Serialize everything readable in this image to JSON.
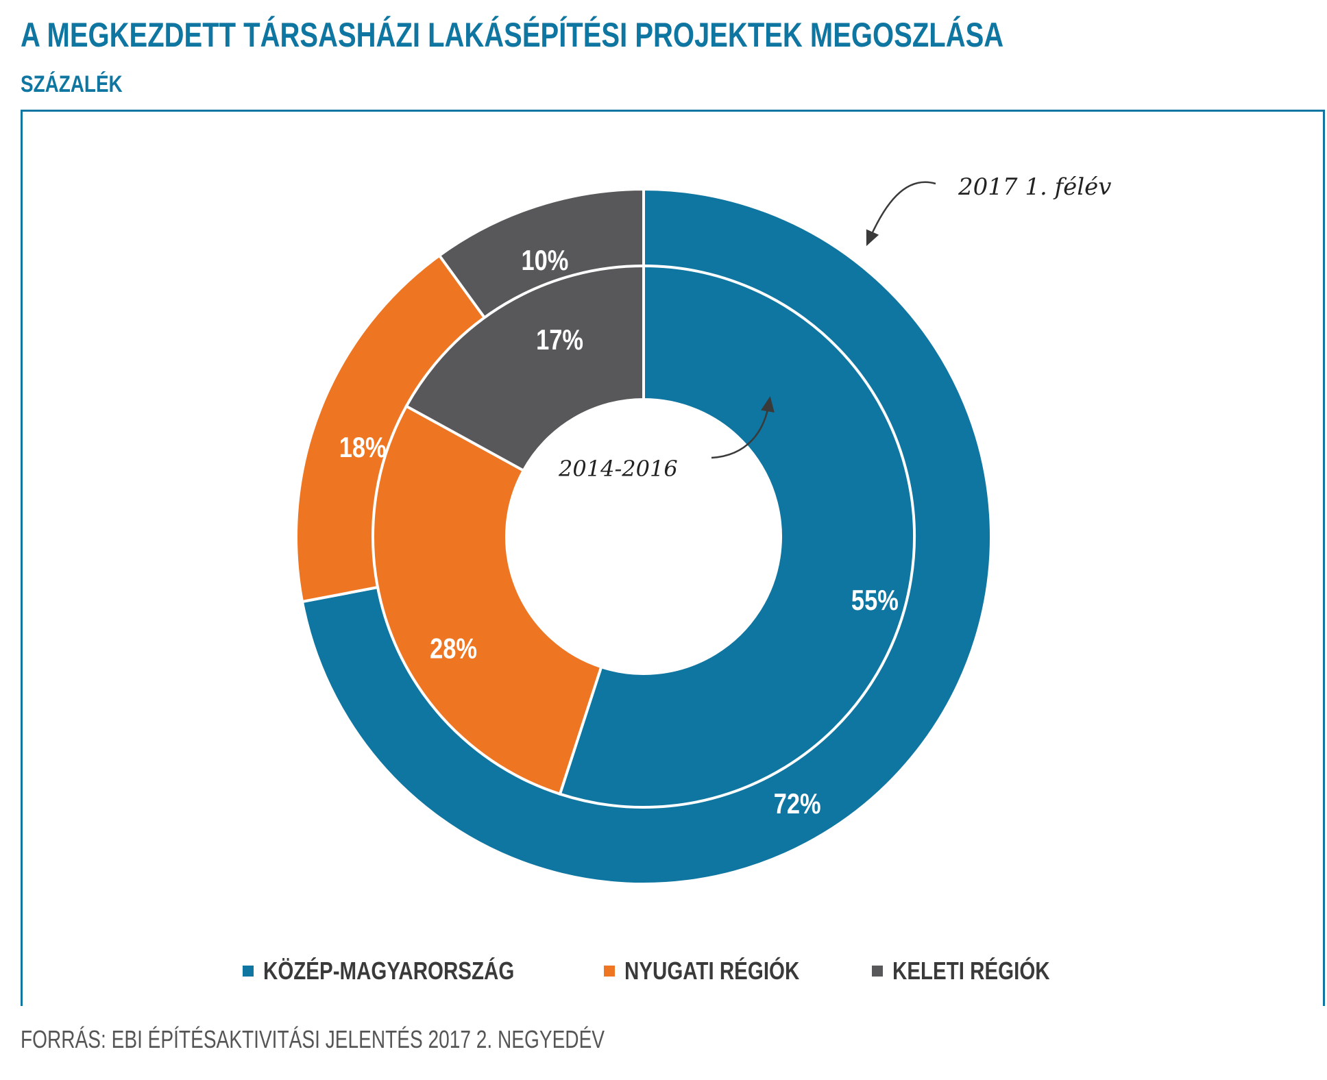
{
  "title": "A MEGKEZDETT TÁRSASHÁZI LAKÁSÉPÍTÉSI PROJEKTEK MEGOSZLÁSA",
  "subtitle": "SZÁZALÉK",
  "source": "FORRÁS: EBI ÉPÍTÉSAKTIVITÁSI JELENTÉS 2017 2. NEGYEDÉV",
  "chart_data": {
    "type": "pie",
    "variant": "nested-donut",
    "categories": [
      "KÖZÉP-MAGYARORSZÁG",
      "NYUGATI RÉGIÓK",
      "KELETI RÉGIÓK"
    ],
    "colors": [
      "#0e76a0",
      "#ee7623",
      "#58585a"
    ],
    "series": [
      {
        "name": "2017 1. félév",
        "ring": "outer",
        "values": [
          72,
          18,
          10
        ],
        "labels": [
          "72%",
          "18%",
          "10%"
        ]
      },
      {
        "name": "2014-2016",
        "ring": "inner",
        "values": [
          55,
          28,
          17
        ],
        "labels": [
          "55%",
          "28%",
          "17%"
        ]
      }
    ],
    "legend_position": "bottom",
    "annotations": [
      "2017 1. félév",
      "2014-2016"
    ]
  }
}
